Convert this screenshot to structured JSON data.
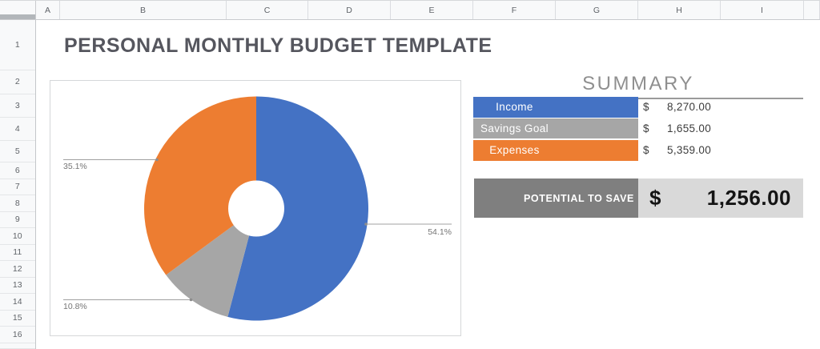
{
  "sheet": {
    "column_headers": [
      "A",
      "B",
      "C",
      "D",
      "E",
      "F",
      "G",
      "H",
      "I"
    ],
    "row_headers": [
      "1",
      "2",
      "3",
      "4",
      "5",
      "6",
      "7",
      "8",
      "9",
      "10",
      "11",
      "12",
      "13",
      "14",
      "15",
      "16"
    ]
  },
  "title": "PERSONAL MONTHLY BUDGET TEMPLATE",
  "summary": {
    "heading": "SUMMARY",
    "rows": [
      {
        "label": "Income",
        "currency": "$",
        "amount": "8,270.00",
        "color": "#4472C4"
      },
      {
        "label": "Savings Goal",
        "currency": "$",
        "amount": "1,655.00",
        "color": "#A6A6A6"
      },
      {
        "label": "Expenses",
        "currency": "$",
        "amount": "5,359.00",
        "color": "#ED7D31"
      }
    ],
    "potential_to_save": {
      "label": "POTENTIAL TO SAVE",
      "currency": "$",
      "amount": "1,256.00",
      "label_bg": "#7F7F7F",
      "value_bg": "#D9D9D9"
    }
  },
  "chart_data": {
    "type": "pie",
    "donut": true,
    "title": "",
    "legend": "none",
    "categories": [
      "Income",
      "Savings Goal",
      "Expenses"
    ],
    "values": [
      54.1,
      10.8,
      35.1
    ],
    "labels": [
      "54.1%",
      "10.8%",
      "35.1%"
    ],
    "colors": [
      "#4472C4",
      "#A6A6A6",
      "#ED7D31"
    ]
  }
}
